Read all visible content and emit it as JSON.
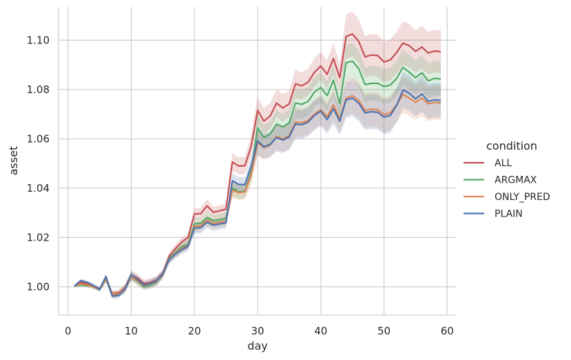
{
  "chart_data": {
    "type": "line",
    "title": "",
    "xlabel": "day",
    "ylabel": "asset",
    "xlim": [
      -1.5,
      61.5
    ],
    "ylim": [
      0.9885,
      1.1135
    ],
    "xticks": [
      0,
      10,
      20,
      30,
      40,
      50,
      60
    ],
    "yticks": [
      1.0,
      1.02,
      1.04,
      1.06,
      1.08,
      1.1
    ],
    "ytick_labels": [
      "1.00",
      "1.02",
      "1.04",
      "1.06",
      "1.08",
      "1.10"
    ],
    "grid": true,
    "legend": {
      "title": "condition",
      "placement": "right"
    },
    "x": [
      1,
      2,
      3,
      4,
      5,
      6,
      7,
      8,
      9,
      10,
      11,
      12,
      13,
      14,
      15,
      16,
      17,
      18,
      19,
      20,
      21,
      22,
      23,
      24,
      25,
      26,
      27,
      28,
      29,
      30,
      31,
      32,
      33,
      34,
      35,
      36,
      37,
      38,
      39,
      40,
      41,
      42,
      43,
      44,
      45,
      46,
      47,
      48,
      49,
      50,
      51,
      52,
      53,
      54,
      55,
      56,
      57,
      58,
      59
    ],
    "series": [
      {
        "name": "ALL",
        "color": "#c44e52",
        "values": [
          1.0003,
          1.0018,
          1.0013,
          1.0004,
          0.999,
          1.0034,
          0.9972,
          0.9976,
          0.9995,
          1.0047,
          1.0035,
          1.0013,
          1.0017,
          1.0027,
          1.0055,
          1.0124,
          1.0155,
          1.0182,
          1.02,
          1.0295,
          1.0297,
          1.0328,
          1.0302,
          1.0308,
          1.0315,
          1.0506,
          1.049,
          1.0491,
          1.0572,
          1.0715,
          1.0672,
          1.0693,
          1.0745,
          1.0725,
          1.0742,
          1.0823,
          1.0815,
          1.083,
          1.087,
          1.0895,
          1.0862,
          1.0925,
          1.0848,
          1.1015,
          1.1025,
          1.0995,
          1.0932,
          1.094,
          1.0938,
          1.0912,
          1.092,
          1.095,
          1.0988,
          1.0978,
          1.0955,
          1.0972,
          1.0948,
          1.0956,
          1.0953
        ],
        "ci_low": [
          0.9998,
          1.0008,
          1.0003,
          0.9994,
          0.9982,
          1.0022,
          0.996,
          0.9964,
          0.998,
          1.003,
          1.0018,
          0.9997,
          1.0,
          1.001,
          1.004,
          1.0108,
          1.0138,
          1.0165,
          1.0182,
          1.0272,
          1.0274,
          1.03,
          1.028,
          1.0285,
          1.0292,
          1.047,
          1.0455,
          1.0456,
          1.053,
          1.066,
          1.062,
          1.064,
          1.069,
          1.067,
          1.0688,
          1.0765,
          1.076,
          1.0775,
          1.0812,
          1.0838,
          1.0806,
          1.086,
          1.0792,
          1.0925,
          1.0935,
          1.0905,
          1.0848,
          1.0855,
          1.0852,
          1.083,
          1.0838,
          1.0865,
          1.09,
          1.089,
          1.087,
          1.0885,
          1.0862,
          1.087,
          1.0866
        ],
        "ci_high": [
          1.0008,
          1.0028,
          1.0023,
          1.0014,
          0.9998,
          1.0046,
          0.9984,
          0.9988,
          1.001,
          1.0064,
          1.0052,
          1.0029,
          1.0034,
          1.0044,
          1.007,
          1.014,
          1.0172,
          1.0199,
          1.0218,
          1.0318,
          1.032,
          1.0356,
          1.0324,
          1.0331,
          1.0338,
          1.0542,
          1.0525,
          1.0526,
          1.0614,
          1.077,
          1.0724,
          1.0746,
          1.08,
          1.078,
          1.0796,
          1.0881,
          1.087,
          1.0885,
          1.0928,
          1.0952,
          1.0918,
          1.099,
          1.0904,
          1.1105,
          1.1115,
          1.1085,
          1.1016,
          1.1025,
          1.1024,
          1.0994,
          1.1002,
          1.1035,
          1.1076,
          1.1066,
          1.104,
          1.1059,
          1.1034,
          1.1042,
          1.104
        ]
      },
      {
        "name": "ARGMAX",
        "color": "#55a868",
        "values": [
          1.0003,
          1.0008,
          1.0005,
          1.0,
          0.9988,
          1.003,
          0.9967,
          0.997,
          0.999,
          1.0042,
          1.0022,
          1.0,
          1.0007,
          1.002,
          1.0048,
          1.0115,
          1.0137,
          1.0163,
          1.0172,
          1.0255,
          1.0258,
          1.028,
          1.0268,
          1.0272,
          1.0278,
          1.04,
          1.0385,
          1.0388,
          1.0465,
          1.0645,
          1.0605,
          1.062,
          1.066,
          1.0648,
          1.0665,
          1.0745,
          1.074,
          1.0752,
          1.079,
          1.0808,
          1.0775,
          1.0838,
          1.0742,
          1.0908,
          1.0915,
          1.0885,
          1.082,
          1.0825,
          1.0825,
          1.0812,
          1.0818,
          1.0845,
          1.089,
          1.087,
          1.0848,
          1.0868,
          1.0835,
          1.0845,
          1.0843
        ],
        "ci_low": [
          0.9998,
          1.0,
          0.9997,
          0.9992,
          0.998,
          1.0018,
          0.9955,
          0.9958,
          0.9975,
          1.0025,
          1.0006,
          0.9985,
          0.9991,
          1.0003,
          1.0032,
          1.0098,
          1.012,
          1.0145,
          1.0154,
          1.0232,
          1.0235,
          1.0256,
          1.0245,
          1.0249,
          1.0255,
          1.0368,
          1.0355,
          1.0358,
          1.0428,
          1.059,
          1.0555,
          1.057,
          1.0605,
          1.0595,
          1.0612,
          1.0685,
          1.0682,
          1.0694,
          1.073,
          1.0748,
          1.0716,
          1.0775,
          1.0686,
          1.0835,
          1.0842,
          1.0812,
          1.075,
          1.0755,
          1.0755,
          1.0742,
          1.0748,
          1.0775,
          1.0818,
          1.0798,
          1.0778,
          1.0796,
          1.0765,
          1.0775,
          1.0773
        ],
        "ci_high": [
          1.0008,
          1.0016,
          1.0013,
          1.0008,
          0.9996,
          1.0042,
          0.9979,
          0.9982,
          1.0005,
          1.0059,
          1.0038,
          1.0015,
          1.0023,
          1.0037,
          1.0064,
          1.0132,
          1.0154,
          1.0181,
          1.019,
          1.0278,
          1.0281,
          1.0304,
          1.0291,
          1.0295,
          1.0301,
          1.0432,
          1.0415,
          1.0418,
          1.0502,
          1.07,
          1.0655,
          1.067,
          1.0715,
          1.0701,
          1.0718,
          1.0805,
          1.0798,
          1.081,
          1.085,
          1.0868,
          1.0834,
          1.0901,
          1.0798,
          1.0981,
          1.0988,
          1.0958,
          1.089,
          1.0895,
          1.0895,
          1.0882,
          1.0888,
          1.0915,
          1.0962,
          1.0942,
          1.0918,
          1.094,
          1.0905,
          1.0915,
          1.0913
        ]
      },
      {
        "name": "ONLY_PRED",
        "color": "#dd8452",
        "values": [
          1.0003,
          1.0012,
          1.0008,
          1.0,
          0.999,
          1.0032,
          0.997,
          0.9972,
          0.9992,
          1.004,
          1.0025,
          1.0005,
          1.0012,
          1.0022,
          1.005,
          1.011,
          1.0135,
          1.0155,
          1.0168,
          1.0245,
          1.0248,
          1.027,
          1.0258,
          1.0262,
          1.0268,
          1.0392,
          1.0382,
          1.0385,
          1.0455,
          1.0585,
          1.0565,
          1.0575,
          1.061,
          1.06,
          1.0612,
          1.0668,
          1.0665,
          1.0675,
          1.07,
          1.0718,
          1.069,
          1.0738,
          1.068,
          1.0765,
          1.0775,
          1.0755,
          1.0715,
          1.072,
          1.0718,
          1.0698,
          1.0705,
          1.0738,
          1.078,
          1.0765,
          1.0748,
          1.0765,
          1.0742,
          1.0748,
          1.0745
        ],
        "ci_low": [
          0.9998,
          1.0004,
          1.0,
          0.9992,
          0.9982,
          1.002,
          0.9958,
          0.996,
          0.9977,
          1.0023,
          1.0009,
          0.999,
          0.9996,
          1.0005,
          1.0034,
          1.0093,
          1.0118,
          1.0137,
          1.015,
          1.0222,
          1.0225,
          1.0246,
          1.0235,
          1.0239,
          1.0245,
          1.036,
          1.0352,
          1.0355,
          1.0418,
          1.053,
          1.0515,
          1.0525,
          1.0555,
          1.0547,
          1.0559,
          1.0608,
          1.0607,
          1.0617,
          1.064,
          1.0658,
          1.0631,
          1.0675,
          1.0624,
          1.0692,
          1.0702,
          1.0682,
          1.0645,
          1.065,
          1.0648,
          1.0628,
          1.0635,
          1.0668,
          1.0708,
          1.0693,
          1.0678,
          1.0693,
          1.0672,
          1.0678,
          1.0675
        ],
        "ci_high": [
          1.0008,
          1.002,
          1.0016,
          1.0008,
          0.9998,
          1.0044,
          0.9982,
          0.9984,
          1.0007,
          1.0057,
          1.0041,
          1.002,
          1.0028,
          1.0039,
          1.0066,
          1.0127,
          1.0152,
          1.0173,
          1.0186,
          1.0268,
          1.0271,
          1.0294,
          1.0281,
          1.0285,
          1.0291,
          1.0424,
          1.0412,
          1.0415,
          1.0492,
          1.064,
          1.0615,
          1.0625,
          1.0665,
          1.0653,
          1.0665,
          1.0728,
          1.0723,
          1.0733,
          1.076,
          1.0778,
          1.0749,
          1.0801,
          1.0736,
          1.0838,
          1.0848,
          1.0828,
          1.0785,
          1.079,
          1.0788,
          1.0768,
          1.0775,
          1.0808,
          1.0852,
          1.0837,
          1.0818,
          1.0837,
          1.0812,
          1.0818,
          1.0815
        ]
      },
      {
        "name": "PLAIN",
        "color": "#4c72b0",
        "values": [
          1.0003,
          1.0025,
          1.0018,
          1.0005,
          0.999,
          1.0042,
          0.9962,
          0.9965,
          0.999,
          1.0048,
          1.003,
          1.0008,
          1.0013,
          1.0025,
          1.0052,
          1.011,
          1.0133,
          1.015,
          1.0165,
          1.0238,
          1.024,
          1.0262,
          1.025,
          1.0255,
          1.026,
          1.043,
          1.0415,
          1.0415,
          1.049,
          1.0592,
          1.0568,
          1.0578,
          1.0605,
          1.0595,
          1.0608,
          1.066,
          1.0657,
          1.0668,
          1.0695,
          1.0712,
          1.0678,
          1.0722,
          1.0672,
          1.0758,
          1.0765,
          1.0745,
          1.0705,
          1.071,
          1.0708,
          1.0688,
          1.0695,
          1.0735,
          1.0798,
          1.0785,
          1.0762,
          1.0782,
          1.0752,
          1.0758,
          1.0755
        ],
        "ci_low": [
          0.9998,
          1.0017,
          1.001,
          0.9997,
          0.9982,
          1.003,
          0.995,
          0.9953,
          0.9975,
          1.0031,
          1.0014,
          0.9993,
          0.9997,
          1.0008,
          1.0036,
          1.0093,
          1.0116,
          1.0132,
          1.0147,
          1.0215,
          1.0217,
          1.0238,
          1.0227,
          1.0232,
          1.0237,
          1.0398,
          1.0385,
          1.0385,
          1.0453,
          1.0537,
          1.0518,
          1.0528,
          1.055,
          1.0542,
          1.0555,
          1.06,
          1.0599,
          1.061,
          1.0635,
          1.0652,
          1.0619,
          1.0659,
          1.0616,
          1.0685,
          1.0692,
          1.0672,
          1.0635,
          1.064,
          1.0638,
          1.0618,
          1.0625,
          1.0665,
          1.0726,
          1.0713,
          1.0692,
          1.071,
          1.0682,
          1.0688,
          1.0685
        ],
        "ci_high": [
          1.0008,
          1.0033,
          1.0026,
          1.0013,
          0.9998,
          1.0054,
          0.9974,
          0.9977,
          1.0005,
          1.0065,
          1.0046,
          1.0023,
          1.0029,
          1.0042,
          1.0068,
          1.0127,
          1.015,
          1.0168,
          1.0183,
          1.0261,
          1.0263,
          1.0286,
          1.0273,
          1.0278,
          1.0283,
          1.0462,
          1.0445,
          1.0445,
          1.0527,
          1.0647,
          1.0618,
          1.0628,
          1.066,
          1.0648,
          1.0661,
          1.072,
          1.0715,
          1.0726,
          1.0755,
          1.0772,
          1.0737,
          1.0785,
          1.0728,
          1.0831,
          1.0838,
          1.0818,
          1.0775,
          1.078,
          1.0778,
          1.0758,
          1.0765,
          1.0805,
          1.087,
          1.0857,
          1.0832,
          1.0854,
          1.0822,
          1.0828,
          1.0825
        ]
      }
    ]
  }
}
